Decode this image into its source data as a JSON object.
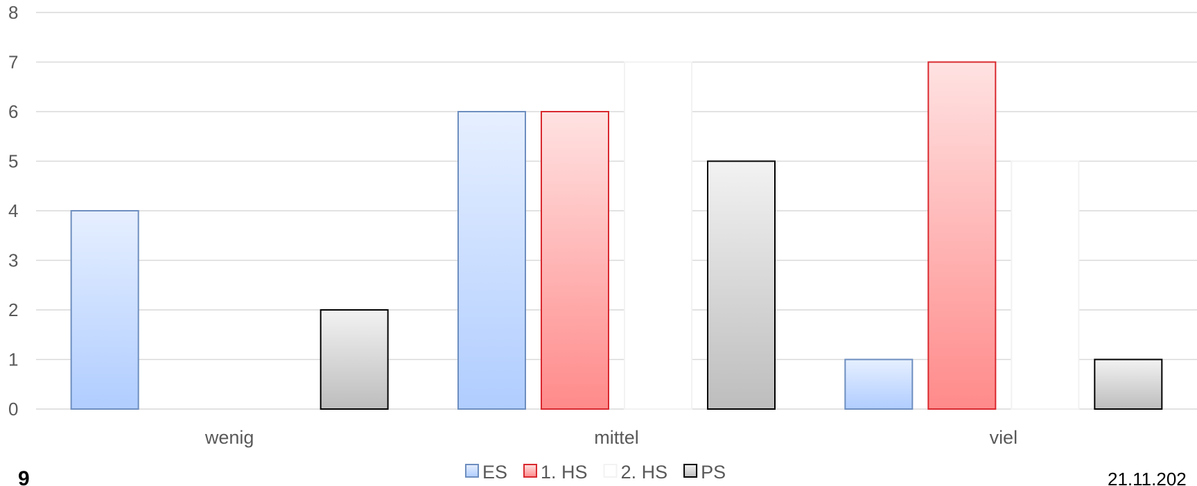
{
  "chart_data": {
    "type": "bar",
    "categories": [
      "wenig",
      "mittel",
      "viel"
    ],
    "series": [
      {
        "name": "ES",
        "values": [
          4,
          6,
          1
        ],
        "fill_top": "#e6efff",
        "fill_bottom": "#b0cdff",
        "stroke": "#6d8ebf"
      },
      {
        "name": "1. HS",
        "values": [
          0,
          6,
          7
        ],
        "fill_top": "#ffe2e2",
        "fill_bottom": "#ff8a8a",
        "stroke": "#d8282e"
      },
      {
        "name": "2. HS",
        "values": [
          0,
          7,
          5
        ],
        "fill_top": "#ffffff",
        "fill_bottom": "#ffffff",
        "stroke": "#f2f2f2"
      },
      {
        "name": "PS",
        "values": [
          2,
          5,
          1
        ],
        "fill_top": "#f2f2f2",
        "fill_bottom": "#bdbdbd",
        "stroke": "#000000"
      }
    ],
    "ylim": [
      0,
      8
    ],
    "yticks": [
      0,
      1,
      2,
      3,
      4,
      5,
      6,
      7,
      8
    ],
    "grid": true,
    "legend_position": "bottom-center",
    "gridline_color": "#d9d9d9"
  },
  "footer": {
    "page_number": "9",
    "date": "21.11.202"
  }
}
